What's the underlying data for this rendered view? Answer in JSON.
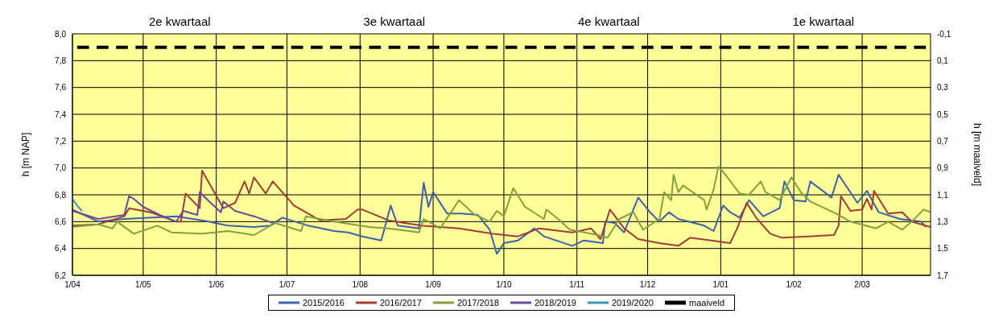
{
  "chart_data": {
    "type": "line",
    "ylabel": "h [m NAP]",
    "y2label": "h [m maaiveld]",
    "annotations": [
      "2e kwartaal",
      "3e kwartaal",
      "4e kwartaal",
      "1e kwartaal"
    ],
    "xlim": [
      "2001-04-01",
      "2002-03-31"
    ],
    "xticks": [
      {
        "value": "2001-04-01",
        "label": "1/04"
      },
      {
        "value": "2001-05-01",
        "label": "1/05"
      },
      {
        "value": "2001-06-01",
        "label": "1/06"
      },
      {
        "value": "2001-07-01",
        "label": "1/07"
      },
      {
        "value": "2001-08-01",
        "label": "1/08"
      },
      {
        "value": "2001-09-01",
        "label": "1/09"
      },
      {
        "value": "2001-10-01",
        "label": "1/10"
      },
      {
        "value": "2001-11-01",
        "label": "1/11"
      },
      {
        "value": "2001-12-01",
        "label": "1/12"
      },
      {
        "value": "2002-01-01",
        "label": "1/01"
      },
      {
        "value": "2002-02-01",
        "label": "1/02"
      },
      {
        "value": "2002-03-02",
        "label": "2/03"
      }
    ],
    "ylim": [
      6.2,
      8.0
    ],
    "yticks": [
      {
        "value": 6.2,
        "label": "6,2"
      },
      {
        "value": 6.4,
        "label": "6,4"
      },
      {
        "value": 6.6,
        "label": "6,6"
      },
      {
        "value": 6.8,
        "label": "6,8"
      },
      {
        "value": 7.0,
        "label": "7,0"
      },
      {
        "value": 7.2,
        "label": "7,2"
      },
      {
        "value": 7.4,
        "label": "7,4"
      },
      {
        "value": 7.6,
        "label": "7,6"
      },
      {
        "value": 7.8,
        "label": "7,8"
      },
      {
        "value": 8.0,
        "label": "8,0"
      }
    ],
    "y2lim": [
      1.7,
      -0.1
    ],
    "y2ticks": [
      {
        "value": -0.1,
        "label": "-0,1"
      },
      {
        "value": 0.1,
        "label": "0,1"
      },
      {
        "value": 0.3,
        "label": "0,3"
      },
      {
        "value": 0.5,
        "label": "0,5"
      },
      {
        "value": 0.7,
        "label": "0,7"
      },
      {
        "value": 0.9,
        "label": "0,9"
      },
      {
        "value": 1.1,
        "label": "1,1"
      },
      {
        "value": 1.3,
        "label": "1,3"
      },
      {
        "value": 1.5,
        "label": "1,5"
      },
      {
        "value": 1.7,
        "label": "1,7"
      }
    ],
    "grid": true,
    "legend": "bottom",
    "marker": "none",
    "series": [
      {
        "name": "2015/2016",
        "color": "#3a62a7",
        "x": [
          "2001-04-01",
          "2001-04-12",
          "2001-04-23",
          "2001-05-15",
          "2001-05-26",
          "2001-06-06",
          "2001-06-17",
          "2001-06-24",
          "2001-06-29",
          "2001-07-10",
          "2001-07-21",
          "2001-07-27",
          "2001-08-02",
          "2001-08-10",
          "2001-08-14",
          "2001-08-17",
          "2001-08-26",
          "2001-08-28",
          "2001-08-30",
          "2001-09-01",
          "2001-09-07",
          "2001-09-13",
          "2001-09-20",
          "2001-09-25",
          "2001-09-28",
          "2001-10-01",
          "2001-10-07",
          "2001-10-14",
          "2001-10-18",
          "2001-10-30",
          "2001-11-04",
          "2001-11-12",
          "2001-11-13",
          "2001-11-17",
          "2001-11-21",
          "2001-11-27",
          "2001-12-02",
          "2001-12-06",
          "2001-12-10",
          "2001-12-14",
          "2001-12-25",
          "2001-12-29",
          "2002-01-02",
          "2002-01-05",
          "2002-01-09",
          "2002-01-13",
          "2002-01-19",
          "2002-01-26",
          "2002-01-28",
          "2002-02-01",
          "2002-02-06",
          "2002-02-08",
          "2002-02-17",
          "2002-02-20",
          "2002-02-28",
          "2002-03-04",
          "2002-03-09",
          "2002-03-18",
          "2002-03-27",
          "2002-03-29"
        ],
        "values": [
          6.69,
          6.6,
          6.62,
          6.64,
          6.61,
          6.57,
          6.56,
          6.57,
          6.63,
          6.57,
          6.53,
          6.52,
          6.49,
          6.46,
          6.72,
          6.57,
          6.55,
          6.89,
          6.71,
          6.82,
          6.66,
          6.66,
          6.65,
          6.54,
          6.36,
          6.44,
          6.46,
          6.55,
          6.49,
          6.42,
          6.46,
          6.44,
          6.6,
          6.59,
          6.52,
          6.78,
          6.67,
          6.6,
          6.67,
          6.62,
          6.57,
          6.53,
          6.72,
          6.67,
          6.63,
          6.76,
          6.64,
          6.7,
          6.9,
          6.76,
          6.75,
          6.9,
          6.78,
          6.95,
          6.74,
          6.83,
          6.67,
          6.62,
          6.6,
          6.56
        ]
      },
      {
        "name": "2016/2017",
        "color": "#a53a35",
        "x": [
          "2001-04-01",
          "2001-04-12",
          "2001-04-23",
          "2001-04-25",
          "2001-05-04",
          "2001-05-15",
          "2001-05-17",
          "2001-05-19",
          "2001-05-25",
          "2001-05-26",
          "2001-06-04",
          "2001-06-09",
          "2001-06-13",
          "2001-06-15",
          "2001-06-17",
          "2001-06-22",
          "2001-06-25",
          "2001-07-04",
          "2001-07-15",
          "2001-07-26",
          "2001-07-31",
          "2001-08-02",
          "2001-08-13",
          "2001-08-27",
          "2001-09-12",
          "2001-09-26",
          "2001-10-07",
          "2001-10-16",
          "2001-10-30",
          "2001-11-07",
          "2001-11-11",
          "2001-11-15",
          "2001-11-21",
          "2001-11-27",
          "2001-12-06",
          "2001-12-14",
          "2001-12-19",
          "2001-12-28",
          "2002-01-05",
          "2002-01-08",
          "2002-01-12",
          "2002-01-16",
          "2002-01-22",
          "2002-01-27",
          "2002-02-07",
          "2002-02-18",
          "2002-02-20",
          "2002-02-21",
          "2002-02-25",
          "2002-03-02",
          "2002-03-04",
          "2002-03-06",
          "2002-03-07",
          "2002-03-13",
          "2002-03-19",
          "2002-03-23",
          "2002-03-31"
        ],
        "values": [
          6.57,
          6.58,
          6.64,
          6.7,
          6.67,
          6.6,
          6.6,
          6.81,
          6.7,
          6.98,
          6.7,
          6.74,
          6.9,
          6.81,
          6.93,
          6.81,
          6.9,
          6.72,
          6.61,
          6.62,
          6.69,
          6.69,
          6.61,
          6.57,
          6.55,
          6.51,
          6.49,
          6.55,
          6.52,
          6.55,
          6.47,
          6.69,
          6.55,
          6.47,
          6.44,
          6.42,
          6.48,
          6.46,
          6.44,
          6.55,
          6.74,
          6.63,
          6.51,
          6.48,
          6.49,
          6.5,
          6.57,
          6.79,
          6.68,
          6.69,
          6.77,
          6.69,
          6.83,
          6.66,
          6.67,
          6.6,
          6.56
        ]
      },
      {
        "name": "2017/2018",
        "color": "#84a03c",
        "x": [
          "2001-04-01",
          "2001-04-12",
          "2001-04-18",
          "2001-04-20",
          "2001-04-27",
          "2001-05-07",
          "2001-05-13",
          "2001-05-26",
          "2001-06-06",
          "2001-06-17",
          "2001-06-26",
          "2001-07-07",
          "2001-07-09",
          "2001-07-21",
          "2001-08-05",
          "2001-08-13",
          "2001-08-26",
          "2001-08-28",
          "2001-09-04",
          "2001-09-12",
          "2001-09-18",
          "2001-09-25",
          "2001-09-28",
          "2001-10-01",
          "2001-10-05",
          "2001-10-10",
          "2001-10-18",
          "2001-10-19",
          "2001-10-24",
          "2001-10-29",
          "2001-11-10",
          "2001-11-14",
          "2001-11-19",
          "2001-11-25",
          "2001-11-29",
          "2001-12-06",
          "2001-12-08",
          "2001-12-11",
          "2001-12-12",
          "2001-12-14",
          "2001-12-16",
          "2001-12-25",
          "2001-12-26",
          "2001-12-29",
          "2001-12-31",
          "2002-01-03",
          "2002-01-09",
          "2002-01-13",
          "2002-01-18",
          "2002-01-20",
          "2002-01-26",
          "2002-01-31",
          "2002-02-04",
          "2002-02-08",
          "2002-02-19",
          "2002-02-25",
          "2002-03-08",
          "2002-03-13",
          "2002-03-19",
          "2002-03-23",
          "2002-03-28",
          "2002-03-31"
        ],
        "values": [
          6.56,
          6.58,
          6.55,
          6.6,
          6.51,
          6.57,
          6.52,
          6.51,
          6.53,
          6.5,
          6.59,
          6.53,
          6.64,
          6.6,
          6.56,
          6.55,
          6.52,
          6.62,
          6.55,
          6.76,
          6.66,
          6.6,
          6.68,
          6.64,
          6.85,
          6.71,
          6.62,
          6.69,
          6.62,
          6.54,
          6.5,
          6.48,
          6.62,
          6.67,
          6.54,
          6.62,
          6.82,
          6.76,
          6.95,
          6.82,
          6.87,
          6.76,
          6.69,
          6.84,
          7.01,
          6.95,
          6.81,
          6.8,
          6.9,
          6.82,
          6.76,
          6.93,
          6.82,
          6.75,
          6.66,
          6.6,
          6.55,
          6.6,
          6.54,
          6.6,
          6.69,
          6.67
        ]
      },
      {
        "name": "2018/2019",
        "color": "#6a4a9c",
        "x": [
          "2001-04-01",
          "2001-04-12",
          "2001-04-23",
          "2001-04-25",
          "2001-04-27",
          "2001-05-01",
          "2001-05-08",
          "2001-05-15",
          "2001-05-18",
          "2001-05-24",
          "2001-05-25",
          "2001-05-29",
          "2001-06-03",
          "2001-06-04",
          "2001-06-09",
          "2001-06-17",
          "2001-06-25"
        ],
        "values": [
          6.68,
          6.62,
          6.65,
          6.79,
          6.77,
          6.71,
          6.65,
          6.6,
          6.68,
          6.65,
          6.82,
          6.75,
          6.67,
          6.75,
          6.68,
          6.64,
          6.59
        ]
      },
      {
        "name": "2019/2020",
        "color": "#3597b5",
        "x": [
          "2001-04-01",
          "2001-04-03",
          "2001-04-05"
        ],
        "values": [
          6.77,
          6.72,
          6.68
        ]
      },
      {
        "name": "maaiveld",
        "color": "#000000",
        "line_style": "dashed",
        "x": [
          "2001-04-03",
          "2002-03-29"
        ],
        "values": [
          7.9,
          7.9
        ]
      }
    ]
  }
}
